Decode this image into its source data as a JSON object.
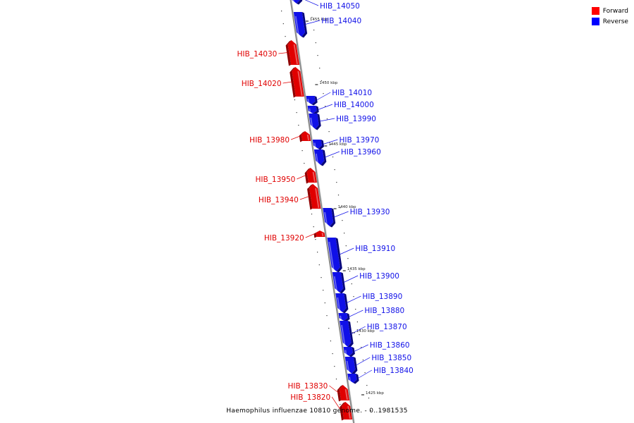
{
  "caption": "Haemophilus influenzae 10810 genome. - 0..1981535",
  "legend": [
    {
      "label": "Forward",
      "color": "#ff0000"
    },
    {
      "label": "Reverse",
      "color": "#0000ff"
    }
  ],
  "colors": {
    "forward": "#e00000",
    "reverse": "#1010e8",
    "backbone": "#888888"
  },
  "ticks": [
    "1455 kbp",
    "1450 kbp",
    "1445 kbp",
    "1440 kbp",
    "1435 kbp",
    "1430 kbp",
    "1425 kbp"
  ],
  "genes": [
    {
      "name": "HIB_14050",
      "strand": "reverse"
    },
    {
      "name": "HIB_14040",
      "strand": "reverse"
    },
    {
      "name": "HIB_14030",
      "strand": "forward"
    },
    {
      "name": "HIB_14020",
      "strand": "forward"
    },
    {
      "name": "HIB_14010",
      "strand": "reverse"
    },
    {
      "name": "HIB_14000",
      "strand": "reverse"
    },
    {
      "name": "HIB_13990",
      "strand": "reverse"
    },
    {
      "name": "HIB_13980",
      "strand": "forward"
    },
    {
      "name": "HIB_13970",
      "strand": "reverse"
    },
    {
      "name": "HIB_13960",
      "strand": "reverse"
    },
    {
      "name": "HIB_13950",
      "strand": "forward"
    },
    {
      "name": "HIB_13940",
      "strand": "forward"
    },
    {
      "name": "HIB_13930",
      "strand": "reverse"
    },
    {
      "name": "HIB_13920",
      "strand": "forward"
    },
    {
      "name": "HIB_13910",
      "strand": "reverse"
    },
    {
      "name": "HIB_13900",
      "strand": "reverse"
    },
    {
      "name": "HIB_13890",
      "strand": "reverse"
    },
    {
      "name": "HIB_13880",
      "strand": "reverse"
    },
    {
      "name": "HIB_13870",
      "strand": "reverse"
    },
    {
      "name": "HIB_13860",
      "strand": "reverse"
    },
    {
      "name": "HIB_13850",
      "strand": "reverse"
    },
    {
      "name": "HIB_13840",
      "strand": "reverse"
    },
    {
      "name": "HIB_13830",
      "strand": "forward"
    },
    {
      "name": "HIB_13820",
      "strand": "forward"
    }
  ]
}
